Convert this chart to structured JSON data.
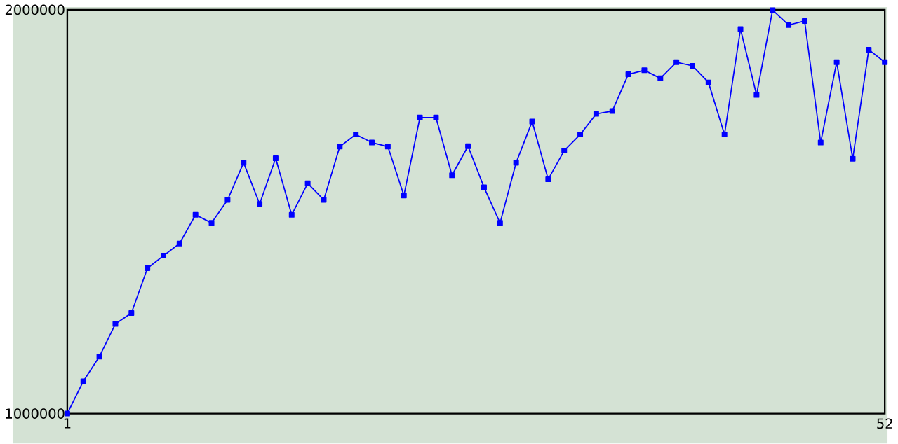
{
  "chart_data": {
    "type": "line",
    "x": [
      1,
      2,
      3,
      4,
      5,
      6,
      7,
      8,
      9,
      10,
      11,
      12,
      13,
      14,
      15,
      16,
      17,
      18,
      19,
      20,
      21,
      22,
      23,
      24,
      25,
      26,
      27,
      28,
      29,
      30,
      31,
      32,
      33,
      34,
      35,
      36,
      37,
      38,
      39,
      40,
      41,
      42,
      43,
      44,
      45,
      46,
      47,
      48,
      49,
      50,
      51,
      52
    ],
    "series": [
      {
        "color": "#0000ff",
        "values": [
          1000000,
          1080000,
          1141000,
          1222000,
          1249000,
          1360000,
          1391000,
          1421000,
          1492000,
          1472000,
          1529000,
          1621000,
          1519000,
          1632000,
          1492000,
          1570000,
          1529000,
          1661000,
          1691000,
          1671000,
          1661000,
          1540000,
          1733000,
          1733000,
          1590000,
          1662000,
          1560000,
          1472000,
          1621000,
          1723000,
          1580000,
          1651000,
          1691000,
          1742000,
          1749000,
          1840000,
          1850000,
          1830000,
          1870000,
          1861000,
          1820000,
          1691000,
          1952000,
          1789000,
          1999000,
          1962000,
          1972000,
          1671000,
          1870000,
          1631000,
          1901000,
          1870000
        ]
      }
    ],
    "xlim": [
      1,
      52
    ],
    "ylim": [
      1000000,
      2000000
    ],
    "xticks": [
      1,
      52
    ],
    "yticks": [
      1000000,
      2000000
    ],
    "marker": "square",
    "line_style": "solid"
  }
}
